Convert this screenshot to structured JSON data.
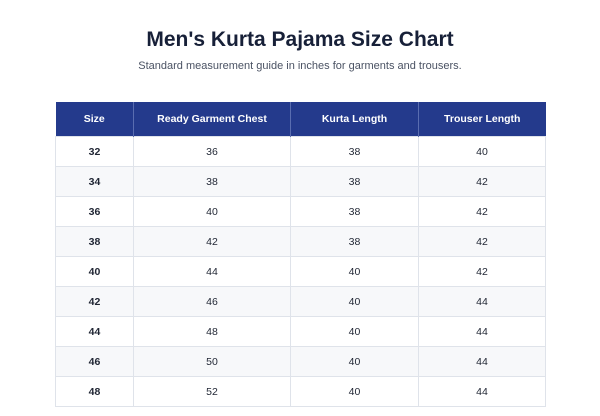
{
  "header": {
    "title": "Men's Kurta Pajama Size Chart",
    "subtitle": "Standard measurement guide in inches for garments and trousers."
  },
  "table": {
    "columns": [
      "Size",
      "Ready Garment Chest",
      "Kurta Length",
      "Trouser Length"
    ],
    "rows": [
      [
        32,
        36,
        38,
        40
      ],
      [
        34,
        38,
        38,
        42
      ],
      [
        36,
        40,
        38,
        42
      ],
      [
        38,
        42,
        38,
        42
      ],
      [
        40,
        44,
        40,
        42
      ],
      [
        42,
        46,
        40,
        44
      ],
      [
        44,
        48,
        40,
        44
      ],
      [
        46,
        50,
        40,
        44
      ],
      [
        48,
        52,
        40,
        44
      ]
    ]
  }
}
